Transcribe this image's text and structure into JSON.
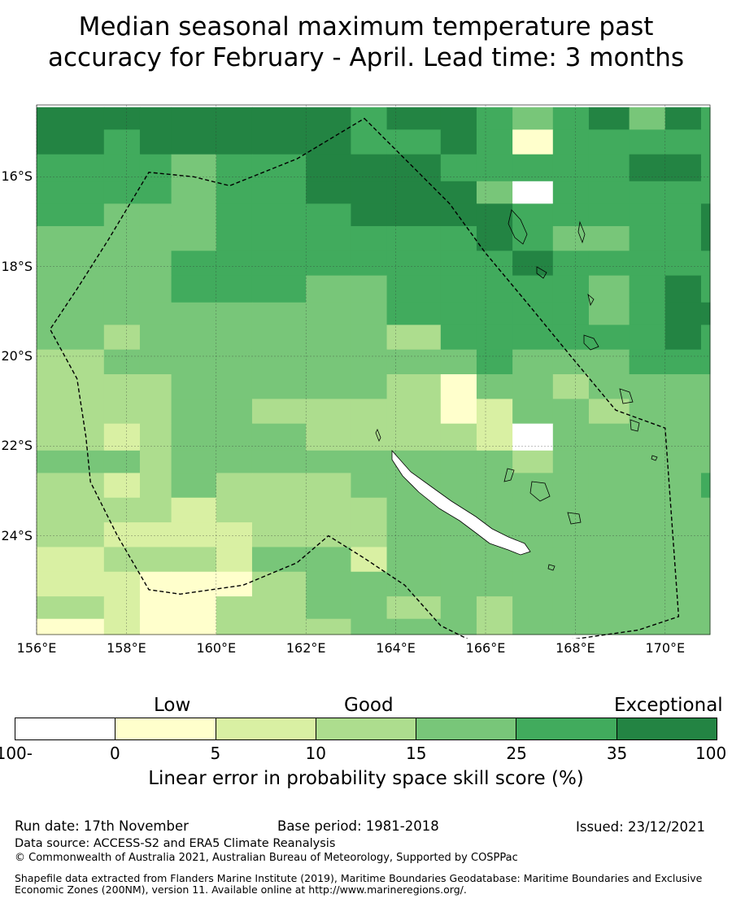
{
  "title": "Median seasonal maximum temperature past\naccuracy for February - April. Lead time: 3 months",
  "map": {
    "lon_range": [
      156,
      171
    ],
    "lat_range": [
      -26.2,
      -14.4
    ],
    "lat_ticks": [
      {
        "v": -16,
        "label": "16°S"
      },
      {
        "v": -18,
        "label": "18°S"
      },
      {
        "v": -20,
        "label": "20°S"
      },
      {
        "v": -22,
        "label": "22°S"
      },
      {
        "v": -24,
        "label": "24°S"
      }
    ],
    "lon_ticks": [
      {
        "v": 156,
        "label": "156°E"
      },
      {
        "v": 158,
        "label": "158°E"
      },
      {
        "v": 160,
        "label": "160°E"
      },
      {
        "v": 162,
        "label": "162°E"
      },
      {
        "v": 164,
        "label": "164°E"
      },
      {
        "v": 166,
        "label": "166°E"
      },
      {
        "v": 168,
        "label": "168°E"
      },
      {
        "v": 170,
        "label": "170°E"
      }
    ],
    "eez_boundary": [
      [
        163.3,
        -14.7
      ],
      [
        164.4,
        -15.8
      ],
      [
        165.2,
        -16.6
      ],
      [
        166.0,
        -17.7
      ],
      [
        167.0,
        -18.9
      ],
      [
        167.9,
        -20.0
      ],
      [
        168.9,
        -21.2
      ],
      [
        170.0,
        -21.6
      ],
      [
        170.3,
        -25.8
      ],
      [
        169.4,
        -26.1
      ],
      [
        168.0,
        -26.3
      ],
      [
        165.8,
        -26.4
      ],
      [
        165.0,
        -26.0
      ],
      [
        164.2,
        -25.1
      ],
      [
        163.3,
        -24.5
      ],
      [
        162.5,
        -24.0
      ],
      [
        161.8,
        -24.6
      ],
      [
        160.6,
        -25.1
      ],
      [
        159.2,
        -25.3
      ],
      [
        158.5,
        -25.2
      ],
      [
        157.8,
        -24.0
      ],
      [
        157.2,
        -22.8
      ],
      [
        157.1,
        -21.8
      ],
      [
        156.9,
        -20.5
      ],
      [
        156.3,
        -19.4
      ],
      [
        156.9,
        -18.5
      ],
      [
        157.6,
        -17.4
      ],
      [
        158.5,
        -15.9
      ],
      [
        159.5,
        -16.0
      ],
      [
        160.3,
        -16.2
      ],
      [
        161.8,
        -15.6
      ],
      [
        163.3,
        -14.7
      ]
    ]
  },
  "chart_data": {
    "type": "heatmap",
    "x_edges": [
      156,
      157.5,
      158.3,
      159,
      160,
      160.8,
      162,
      163,
      163.8,
      165,
      165.8,
      166.6,
      167.5,
      168.3,
      169.2,
      170,
      170.8,
      171
    ],
    "y_edges": [
      -14.45,
      -14.95,
      -15.5,
      -16.1,
      -16.6,
      -17.1,
      -17.65,
      -18.2,
      -18.8,
      -19.3,
      -19.85,
      -20.4,
      -20.95,
      -21.5,
      -22.1,
      -22.6,
      -23.15,
      -23.7,
      -24.25,
      -24.8,
      -25.35,
      -25.85,
      -26.2
    ],
    "values": [
      [
        40,
        40,
        40,
        40,
        40,
        40,
        40,
        30,
        40,
        40,
        30,
        20,
        30,
        40,
        20,
        40,
        30
      ],
      [
        40,
        30,
        40,
        40,
        40,
        40,
        40,
        30,
        30,
        40,
        30,
        2,
        30,
        30,
        30,
        30,
        30
      ],
      [
        30,
        30,
        30,
        20,
        30,
        30,
        40,
        40,
        40,
        30,
        30,
        30,
        30,
        30,
        40,
        40,
        30
      ],
      [
        30,
        30,
        30,
        20,
        30,
        30,
        40,
        40,
        40,
        40,
        20,
        -50,
        30,
        30,
        30,
        30,
        30
      ],
      [
        30,
        20,
        20,
        20,
        30,
        30,
        30,
        40,
        40,
        40,
        40,
        30,
        30,
        30,
        30,
        30,
        40
      ],
      [
        20,
        20,
        20,
        20,
        30,
        30,
        30,
        30,
        30,
        30,
        40,
        30,
        20,
        20,
        30,
        30,
        40
      ],
      [
        20,
        20,
        20,
        30,
        30,
        30,
        30,
        30,
        30,
        30,
        30,
        40,
        30,
        30,
        30,
        30,
        30
      ],
      [
        20,
        20,
        20,
        30,
        30,
        30,
        20,
        20,
        30,
        30,
        30,
        30,
        30,
        20,
        30,
        40,
        30
      ],
      [
        20,
        20,
        20,
        20,
        20,
        20,
        20,
        20,
        30,
        30,
        30,
        30,
        30,
        20,
        30,
        40,
        40
      ],
      [
        20,
        12,
        20,
        20,
        20,
        20,
        20,
        20,
        12,
        30,
        30,
        30,
        30,
        30,
        30,
        40,
        30
      ],
      [
        12,
        20,
        20,
        20,
        20,
        20,
        20,
        20,
        20,
        20,
        30,
        20,
        20,
        20,
        30,
        30,
        30
      ],
      [
        12,
        12,
        12,
        20,
        20,
        20,
        20,
        20,
        12,
        2,
        20,
        20,
        12,
        20,
        20,
        20,
        20
      ],
      [
        12,
        12,
        12,
        20,
        20,
        12,
        12,
        12,
        12,
        2,
        8,
        20,
        20,
        12,
        20,
        20,
        20
      ],
      [
        12,
        8,
        12,
        20,
        20,
        20,
        12,
        12,
        12,
        12,
        8,
        -50,
        20,
        20,
        20,
        20,
        20
      ],
      [
        20,
        20,
        12,
        20,
        20,
        20,
        20,
        20,
        20,
        20,
        20,
        12,
        20,
        20,
        20,
        20,
        20
      ],
      [
        12,
        8,
        12,
        20,
        12,
        12,
        12,
        20,
        20,
        20,
        20,
        20,
        20,
        20,
        20,
        20,
        30
      ],
      [
        12,
        12,
        12,
        8,
        12,
        12,
        12,
        12,
        20,
        20,
        20,
        20,
        20,
        20,
        20,
        20,
        20
      ],
      [
        12,
        8,
        8,
        8,
        8,
        12,
        12,
        12,
        20,
        20,
        20,
        20,
        20,
        20,
        20,
        20,
        20
      ],
      [
        8,
        12,
        12,
        12,
        8,
        20,
        20,
        8,
        20,
        20,
        20,
        20,
        20,
        20,
        20,
        20,
        20
      ],
      [
        8,
        8,
        2,
        2,
        2,
        12,
        20,
        20,
        20,
        20,
        20,
        20,
        20,
        20,
        20,
        20,
        20
      ],
      [
        12,
        8,
        2,
        2,
        12,
        12,
        20,
        20,
        12,
        20,
        12,
        20,
        20,
        20,
        20,
        20,
        20
      ],
      [
        2,
        8,
        2,
        2,
        12,
        12,
        12,
        20,
        20,
        20,
        12,
        20,
        20,
        20,
        20,
        20,
        20
      ]
    ],
    "colorbar": {
      "bounds": [
        -100,
        0,
        5,
        10,
        15,
        25,
        35,
        100
      ],
      "tick_labels": [
        "-100",
        "0",
        "5",
        "10",
        "15",
        "25",
        "35",
        "100"
      ],
      "colors": [
        "#ffffff",
        "#ffffcc",
        "#d9f0a3",
        "#addd8e",
        "#78c679",
        "#41ab5d",
        "#238443"
      ],
      "categories": [
        "Low",
        "Good",
        "Exceptional"
      ],
      "label": "Linear error in probability space skill score (%)"
    }
  },
  "footer": {
    "run_date": "Run date: 17th November",
    "base_period": "Base period: 1981-2018",
    "issued": "Issued: 23/12/2021",
    "data_source": "Data source: ACCESS-S2 and ERA5 Climate Reanalysis",
    "copyright": "© Commonwealth of Australia 2021, Australian Bureau of Meteorology, Supported by COSPPac",
    "shapefile": "Shapefile data extracted from Flanders Marine Institute (2019), Maritime Boundaries Geodatabase: Maritime Boundaries and Exclusive Economic Zones (200NM), version 11. Available online at http://www.marineregions.org/."
  }
}
